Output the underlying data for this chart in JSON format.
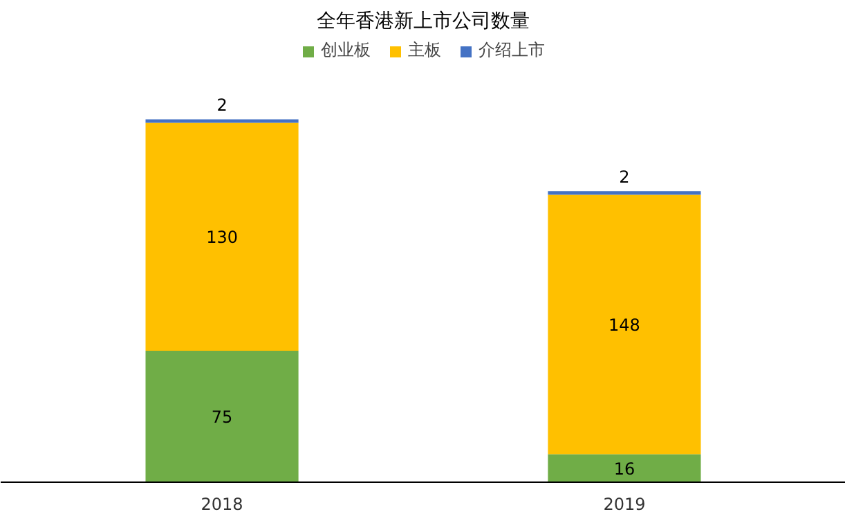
{
  "chart_data": {
    "type": "bar",
    "title": "全年香港新上市公司数量",
    "categories": [
      "2018",
      "2019"
    ],
    "stacked": true,
    "data_labels": true,
    "legend": "top",
    "grid": false,
    "series": [
      {
        "name": "创业板",
        "color": "#70ad47",
        "values": [
          75,
          16
        ]
      },
      {
        "name": "主板",
        "color": "#ffc000",
        "values": [
          130,
          148
        ]
      },
      {
        "name": "介绍上市",
        "color": "#4472c4",
        "values": [
          2,
          2
        ]
      }
    ]
  }
}
